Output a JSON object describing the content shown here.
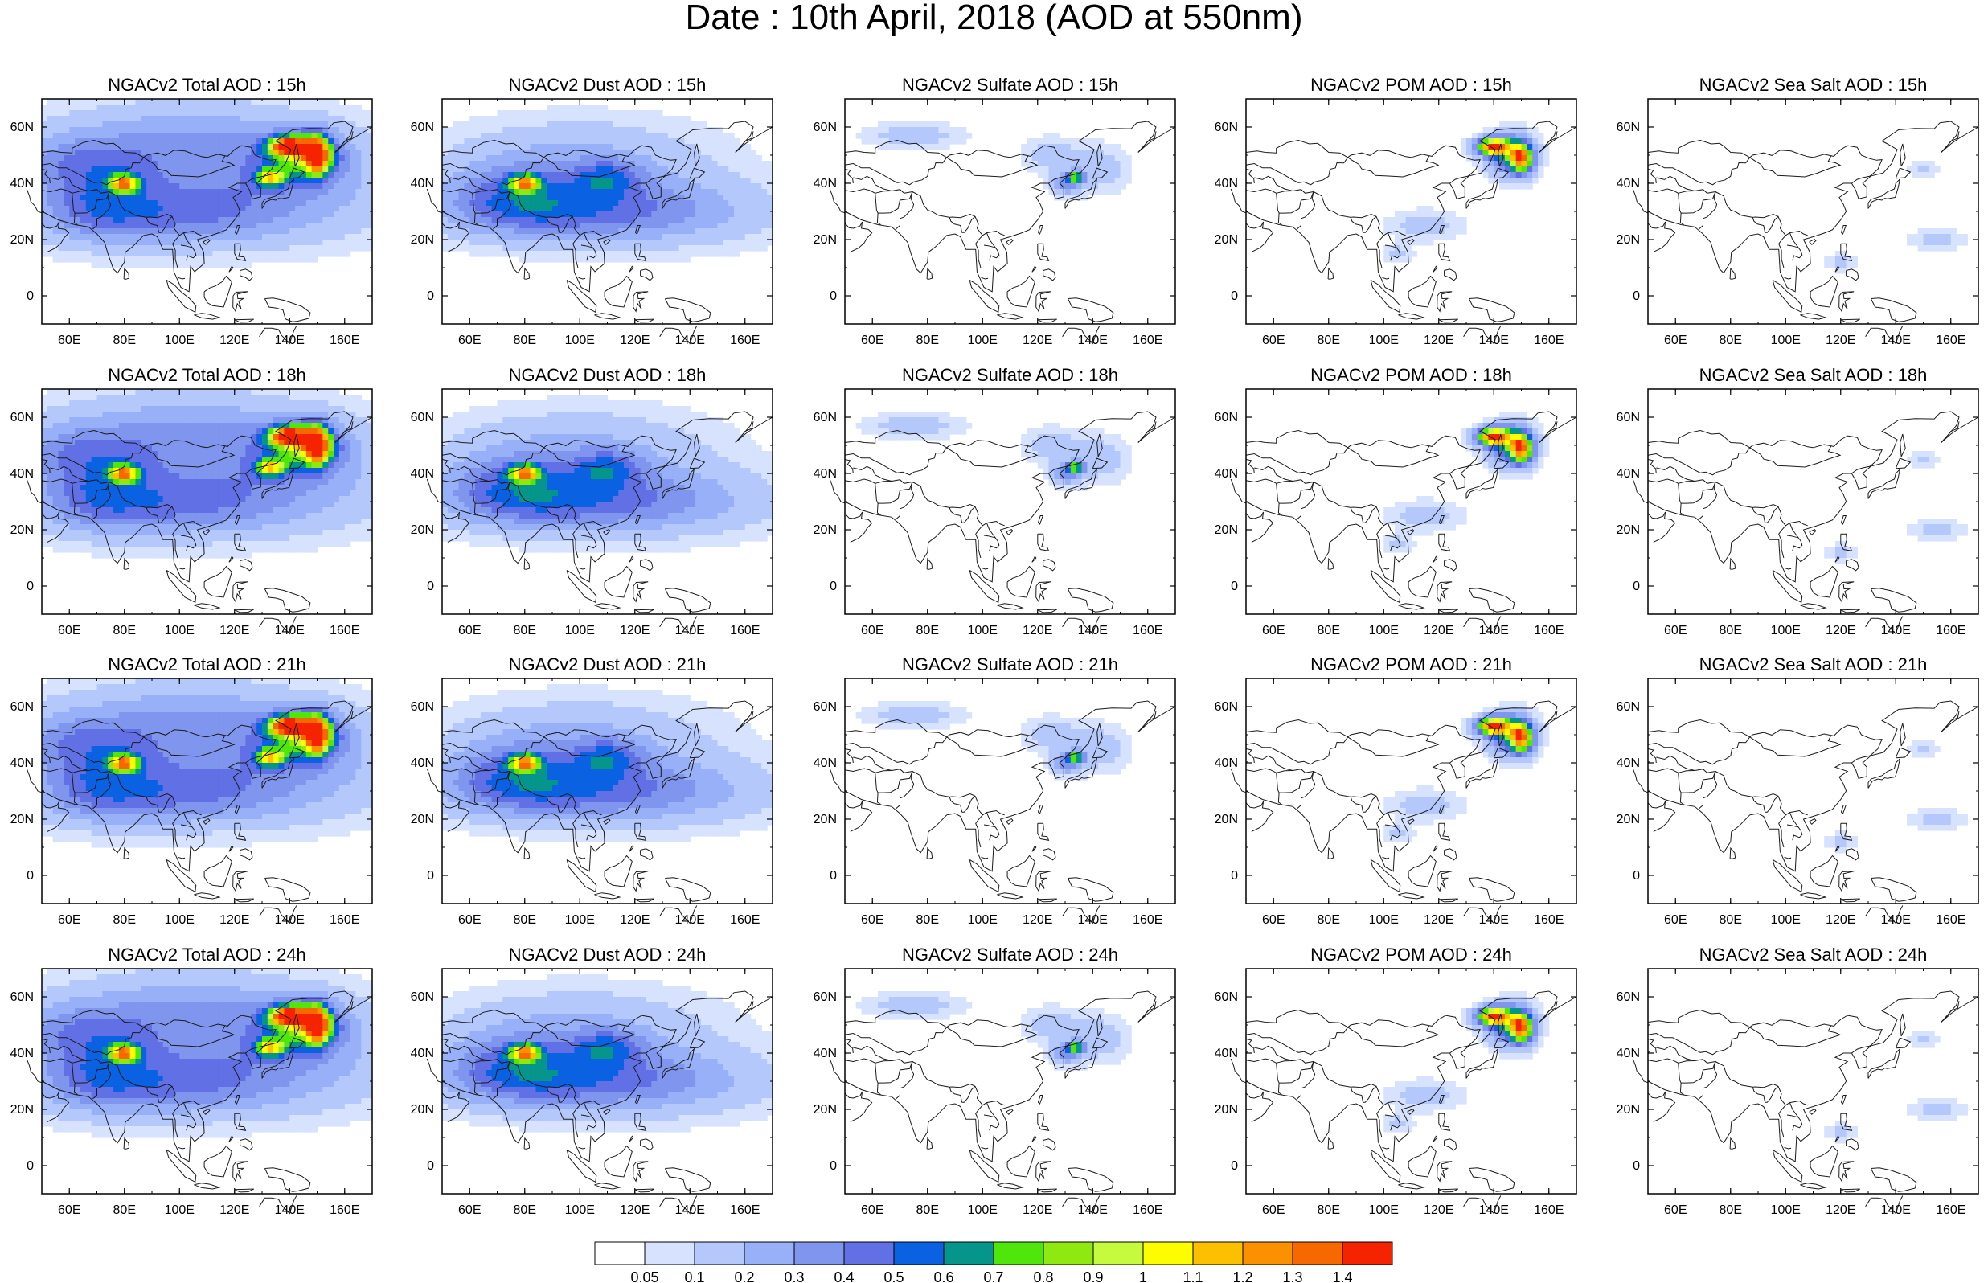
{
  "title": "Date : 10th April, 2018 (AOD at 550nm)",
  "map_extent": {
    "lon": [
      50,
      170
    ],
    "lat": [
      -10,
      70
    ]
  },
  "axes": {
    "xticks": [
      60,
      80,
      100,
      120,
      140,
      160
    ],
    "xtick_labels": [
      "60E",
      "80E",
      "100E",
      "120E",
      "140E",
      "160E"
    ],
    "yticks": [
      0,
      20,
      40,
      60
    ],
    "ytick_labels": [
      "0",
      "20N",
      "40N",
      "60N"
    ]
  },
  "panels": [
    {
      "title": "NGACv2 Total AOD : 15h",
      "species": "total"
    },
    {
      "title": "NGACv2 Dust AOD : 15h",
      "species": "dust"
    },
    {
      "title": "NGACv2 Sulfate AOD : 15h",
      "species": "sulfate"
    },
    {
      "title": "NGACv2 POM AOD : 15h",
      "species": "pom"
    },
    {
      "title": "NGACv2 Sea Salt AOD : 15h",
      "species": "seasalt"
    },
    {
      "title": "NGACv2 Total AOD : 18h",
      "species": "total"
    },
    {
      "title": "NGACv2 Dust AOD : 18h",
      "species": "dust"
    },
    {
      "title": "NGACv2 Sulfate AOD : 18h",
      "species": "sulfate"
    },
    {
      "title": "NGACv2 POM AOD : 18h",
      "species": "pom"
    },
    {
      "title": "NGACv2 Sea Salt AOD : 18h",
      "species": "seasalt"
    },
    {
      "title": "NGACv2 Total AOD : 21h",
      "species": "total"
    },
    {
      "title": "NGACv2 Dust AOD : 21h",
      "species": "dust"
    },
    {
      "title": "NGACv2 Sulfate AOD : 21h",
      "species": "sulfate"
    },
    {
      "title": "NGACv2 POM AOD : 21h",
      "species": "pom"
    },
    {
      "title": "NGACv2 Sea Salt AOD : 21h",
      "species": "seasalt"
    },
    {
      "title": "NGACv2 Total AOD : 24h",
      "species": "total"
    },
    {
      "title": "NGACv2 Dust AOD : 24h",
      "species": "dust"
    },
    {
      "title": "NGACv2 Sulfate AOD : 24h",
      "species": "sulfate"
    },
    {
      "title": "NGACv2 POM AOD : 24h",
      "species": "pom"
    },
    {
      "title": "NGACv2 Sea Salt  AOD : 24h",
      "species": "seasalt"
    }
  ],
  "colorbar": {
    "labels": [
      "0.05",
      "0.1",
      "0.2",
      "0.3",
      "0.4",
      "0.5",
      "0.6",
      "0.7",
      "0.8",
      "0.9",
      "1",
      "1.1",
      "1.2",
      "1.3",
      "1.4"
    ],
    "colors": [
      "#ffffff",
      "#d7e2ff",
      "#b5c8fb",
      "#98b0f7",
      "#7f95ee",
      "#6170e4",
      "#0a62e3",
      "#05958a",
      "#4fe70b",
      "#8fe80f",
      "#c5fb3c",
      "#fdfd00",
      "#fcc000",
      "#fc9100",
      "#f86800",
      "#f52300"
    ]
  }
}
